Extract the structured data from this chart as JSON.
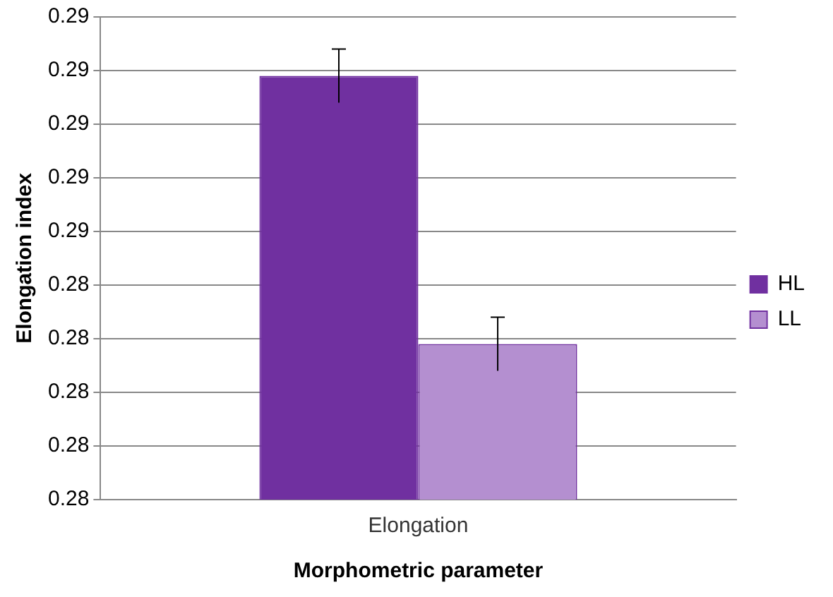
{
  "chart_data": {
    "type": "bar",
    "xlabel": "Morphometric parameter",
    "ylabel": "Elongation index",
    "categories": [
      "Elongation"
    ],
    "series": [
      {
        "name": "HL",
        "color": "#7030a0",
        "values": [
          0.2879
        ],
        "errors": [
          0.0005
        ]
      },
      {
        "name": "LL",
        "color": "#b48fd0",
        "values": [
          0.2829
        ],
        "errors": [
          0.0005
        ]
      }
    ],
    "ylim": [
      0.28,
      0.289
    ],
    "yticks": [
      {
        "value": 0.28,
        "label": "0.28"
      },
      {
        "value": 0.281,
        "label": "0.28"
      },
      {
        "value": 0.282,
        "label": "0.28"
      },
      {
        "value": 0.283,
        "label": "0.28"
      },
      {
        "value": 0.284,
        "label": "0.28"
      },
      {
        "value": 0.285,
        "label": "0.29"
      },
      {
        "value": 0.286,
        "label": "0.29"
      },
      {
        "value": 0.287,
        "label": "0.29"
      },
      {
        "value": 0.288,
        "label": "0.29"
      },
      {
        "value": 0.289,
        "label": "0.29"
      }
    ],
    "grid": "y",
    "legend": "right"
  }
}
